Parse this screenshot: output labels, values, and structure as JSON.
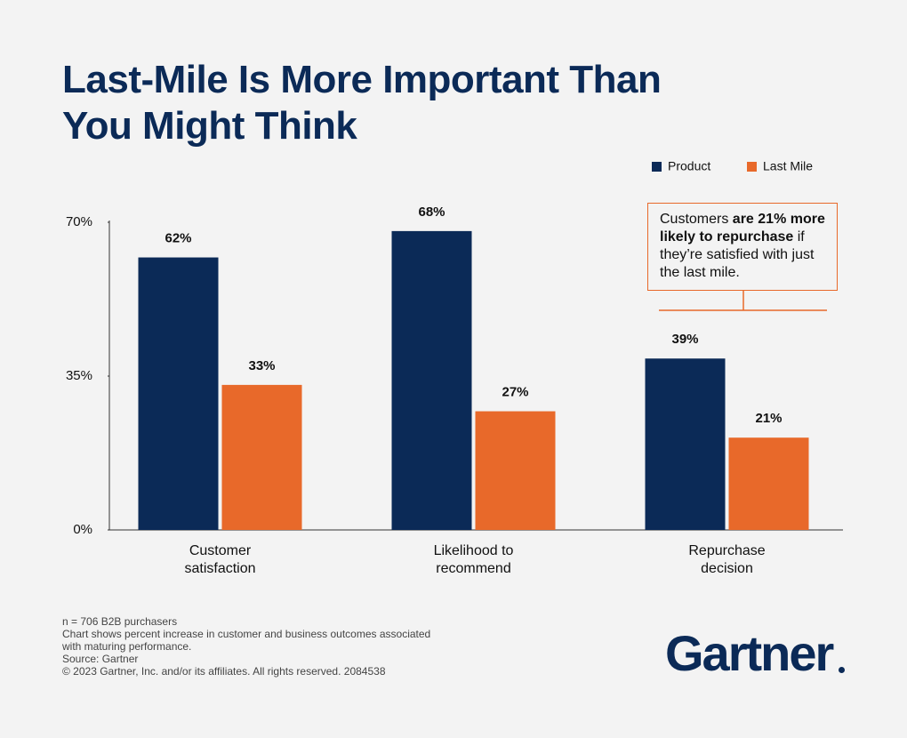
{
  "chart_data": {
    "type": "bar",
    "title": "Last-Mile Is More Important Than You Might Think",
    "categories": [
      "Customer satisfaction",
      "Likelihood to recommend",
      "Repurchase decision"
    ],
    "series": [
      {
        "name": "Product",
        "color": "#0b2a57",
        "values": [
          62,
          68,
          39
        ],
        "value_labels": [
          "62%",
          "68%",
          "39%"
        ]
      },
      {
        "name": "Last Mile",
        "color": "#e8692a",
        "values": [
          33,
          27,
          21
        ],
        "value_labels": [
          "33%",
          "27%",
          "21%"
        ]
      }
    ],
    "ylim": [
      0,
      70
    ],
    "yticks": [
      {
        "value": 0,
        "label": "0%"
      },
      {
        "value": 35,
        "label": "35%"
      },
      {
        "value": 70,
        "label": "70%"
      }
    ],
    "grid": false,
    "legend": "top-right",
    "annotation": [
      "Customers ",
      "are 21% more likely to repurchase",
      " if they’re satisfied with just the last mile."
    ],
    "notes": [
      "n = 706 B2B purchasers",
      "Chart shows percent increase in customer and business outcomes associated with maturing performance.",
      "Source: Gartner",
      "© 2023 Gartner, Inc. and/or its affiliates. All rights reserved. 2084538"
    ],
    "logo": "Gartner"
  }
}
